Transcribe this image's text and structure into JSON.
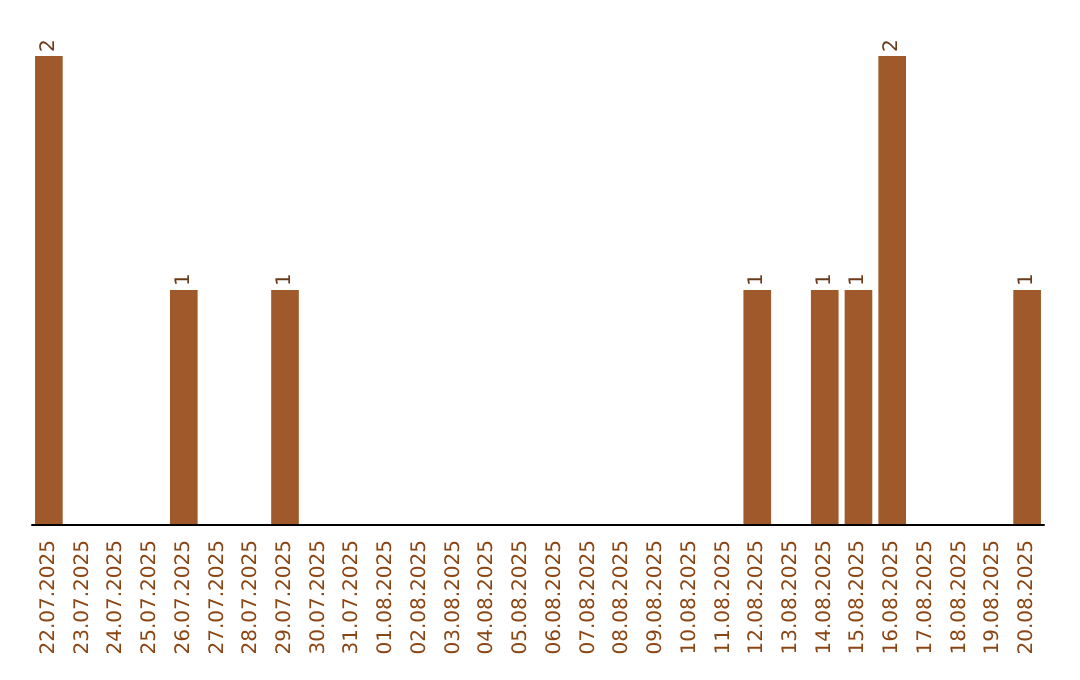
{
  "chart_data": {
    "type": "bar",
    "categories": [
      "22.07.2025",
      "23.07.2025",
      "24.07.2025",
      "25.07.2025",
      "26.07.2025",
      "27.07.2025",
      "28.07.2025",
      "29.07.2025",
      "30.07.2025",
      "31.07.2025",
      "01.08.2025",
      "02.08.2025",
      "03.08.2025",
      "04.08.2025",
      "05.08.2025",
      "06.08.2025",
      "07.08.2025",
      "08.08.2025",
      "09.08.2025",
      "10.08.2025",
      "11.08.2025",
      "12.08.2025",
      "13.08.2025",
      "14.08.2025",
      "15.08.2025",
      "16.08.2025",
      "17.08.2025",
      "18.08.2025",
      "19.08.2025",
      "20.08.2025"
    ],
    "values": [
      2,
      0,
      0,
      0,
      1,
      0,
      0,
      1,
      0,
      0,
      0,
      0,
      0,
      0,
      0,
      0,
      0,
      0,
      0,
      0,
      0,
      1,
      0,
      1,
      1,
      2,
      0,
      0,
      0,
      1
    ],
    "value_labels": [
      "2",
      null,
      null,
      null,
      "1",
      null,
      null,
      "1",
      null,
      null,
      null,
      null,
      null,
      null,
      null,
      null,
      null,
      null,
      null,
      null,
      null,
      "1",
      null,
      "1",
      "1",
      "2",
      null,
      null,
      null,
      "1"
    ],
    "color": "#a0592b",
    "grid": false
  }
}
